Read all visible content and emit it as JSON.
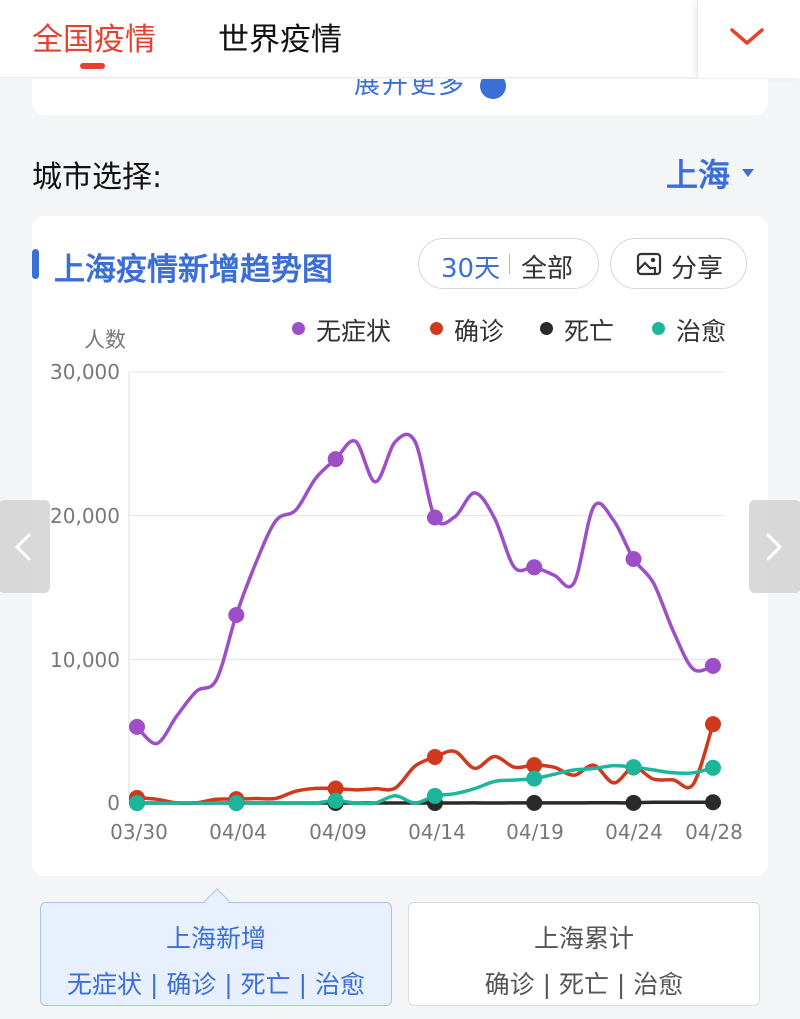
{
  "top_tabs": [
    {
      "label": "全国疫情"
    },
    {
      "label": "世界疫情"
    }
  ],
  "prev_card": {
    "expand_label": "展开更多"
  },
  "city": {
    "label": "城市选择:",
    "selected": "上海"
  },
  "chart_header": {
    "title": "上海疫情新增趋势图",
    "range_30": "30天",
    "range_all": "全部",
    "share_label": "分享"
  },
  "colors": {
    "accent_red": "#e5412f",
    "accent_blue": "#3b6fd6"
  },
  "chart_data": {
    "type": "line",
    "title": "上海疫情新增趋势图",
    "ylabel": "人数",
    "ylim": [
      0,
      30000
    ],
    "yticks": [
      "30,000",
      "20,000",
      "10,000",
      "0"
    ],
    "xtick_labels": [
      "03/30",
      "04/04",
      "04/09",
      "04/14",
      "04/19",
      "04/24",
      "04/28"
    ],
    "grid": true,
    "legend_position": "top-right",
    "x": [
      "03/30",
      "03/31",
      "04/01",
      "04/02",
      "04/03",
      "04/04",
      "04/05",
      "04/06",
      "04/07",
      "04/08",
      "04/09",
      "04/10",
      "04/11",
      "04/12",
      "04/13",
      "04/14",
      "04/15",
      "04/16",
      "04/17",
      "04/18",
      "04/19",
      "04/20",
      "04/21",
      "04/22",
      "04/23",
      "04/24",
      "04/25",
      "04/26",
      "04/27",
      "04/28"
    ],
    "series": [
      {
        "name": "无症状",
        "color": "#9c4fc6",
        "values": [
          5298,
          4144,
          6051,
          7788,
          8581,
          13086,
          16766,
          19660,
          20398,
          22609,
          23937,
          25173,
          22348,
          25141,
          25146,
          19872,
          19923,
          21582,
          19831,
          16407,
          16407,
          15861,
          15319,
          20634,
          19657,
          16983,
          15319,
          11956,
          9330,
          9545
        ]
      },
      {
        "name": "确诊",
        "color": "#d0391d",
        "values": [
          358,
          260,
          6,
          17,
          260,
          268,
          311,
          322,
          824,
          1015,
          1006,
          914,
          994,
          1040,
          2573,
          3200,
          3590,
          2417,
          3238,
          2494,
          2634,
          2494,
          1931,
          2634,
          1401,
          2472,
          1661,
          1606,
          1292,
          5487
        ]
      },
      {
        "name": "死亡",
        "color": "#2a2a2a",
        "values": [
          0,
          0,
          0,
          0,
          0,
          0,
          0,
          0,
          0,
          0,
          0,
          0,
          0,
          0,
          0,
          0,
          0,
          7,
          3,
          7,
          8,
          7,
          7,
          12,
          11,
          12,
          52,
          48,
          47,
          52
        ]
      },
      {
        "name": "治愈",
        "color": "#1eb69b",
        "values": [
          0,
          0,
          0,
          0,
          0,
          0,
          0,
          0,
          0,
          0,
          158,
          0,
          0,
          500,
          0,
          500,
          650,
          1000,
          1500,
          1600,
          1700,
          2000,
          2300,
          2400,
          2600,
          2500,
          2300,
          2100,
          2100,
          2450
        ]
      }
    ]
  },
  "bottom_buttons": [
    {
      "title": "上海新增",
      "sub": "无症状 | 确诊 | 死亡 | 治愈"
    },
    {
      "title": "上海累计",
      "sub": "确诊 | 死亡 | 治愈"
    }
  ]
}
